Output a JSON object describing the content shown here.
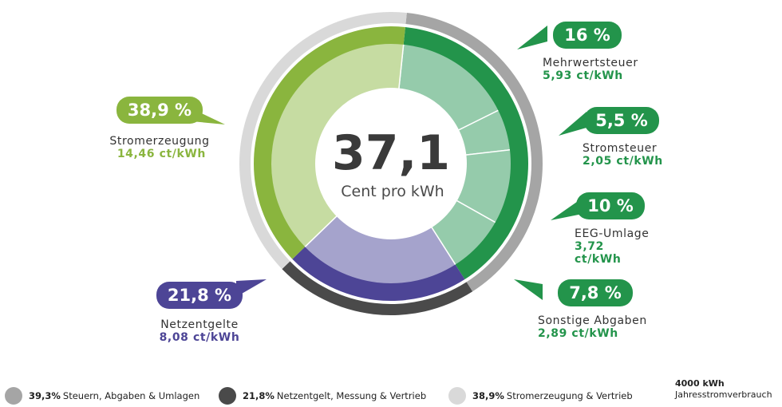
{
  "chart_data": {
    "type": "pie",
    "total": {
      "value": "37,1",
      "unit": "Cent pro kWh"
    },
    "segments": [
      {
        "key": "mwst",
        "percent": 16,
        "percent_label": "16 %",
        "label": "Mehrwertsteuer",
        "value_label": "5,93 ct/kWh",
        "ct": 5.93,
        "group": "taxes"
      },
      {
        "key": "stromsteuer",
        "percent": 5.5,
        "percent_label": "5,5 %",
        "label": "Stromsteuer",
        "value_label": "2,05 ct/kWh",
        "ct": 2.05,
        "group": "taxes"
      },
      {
        "key": "eeg",
        "percent": 10,
        "percent_label": "10 %",
        "label": "EEG-Umlage",
        "value_label": "3,72 ct/kWh",
        "ct": 3.72,
        "group": "taxes"
      },
      {
        "key": "sonstige",
        "percent": 7.8,
        "percent_label": "7,8 %",
        "label": "Sonstige Abgaben",
        "value_label": "2,89 ct/kWh",
        "ct": 2.89,
        "group": "taxes"
      },
      {
        "key": "netz",
        "percent": 21.8,
        "percent_label": "21,8 %",
        "label": "Netzentgelte",
        "value_label": "8,08 ct/kWh",
        "ct": 8.08,
        "group": "grid"
      },
      {
        "key": "erzeugung",
        "percent": 38.9,
        "percent_label": "38,9 %",
        "label": "Stromerzeugung",
        "value_label": "14,46 ct/kWh",
        "ct": 14.46,
        "group": "generation"
      }
    ],
    "groups": [
      {
        "key": "taxes",
        "percent": 39.3
      },
      {
        "key": "grid",
        "percent": 21.8
      },
      {
        "key": "generation",
        "percent": 38.9
      }
    ]
  },
  "legend": [
    {
      "percent": "39,3%",
      "text": "Steuern, Abgaben & Umlagen",
      "color": "#a5a5a5"
    },
    {
      "percent": "21,8%",
      "text": "Netzentgelt, Messung & Vertrieb",
      "color": "#4a4a4a"
    },
    {
      "percent": "38,9%",
      "text": "Stromerzeugung & Vertrieb",
      "color": "#d9d9d9"
    }
  ],
  "usage": {
    "amount": "4000 kWh",
    "label": "Jahresstromverbrauch"
  },
  "colors": {
    "taxes_dark": "#23944b",
    "taxes_light": "#95cbab",
    "grid_dark": "#4d4596",
    "grid_light": "#a5a3cc",
    "gen_dark": "#8ab53e",
    "gen_light": "#c6dca2",
    "outer_taxes": "#a5a5a5",
    "outer_grid": "#4a4a4a",
    "outer_gen": "#d9d9d9"
  }
}
